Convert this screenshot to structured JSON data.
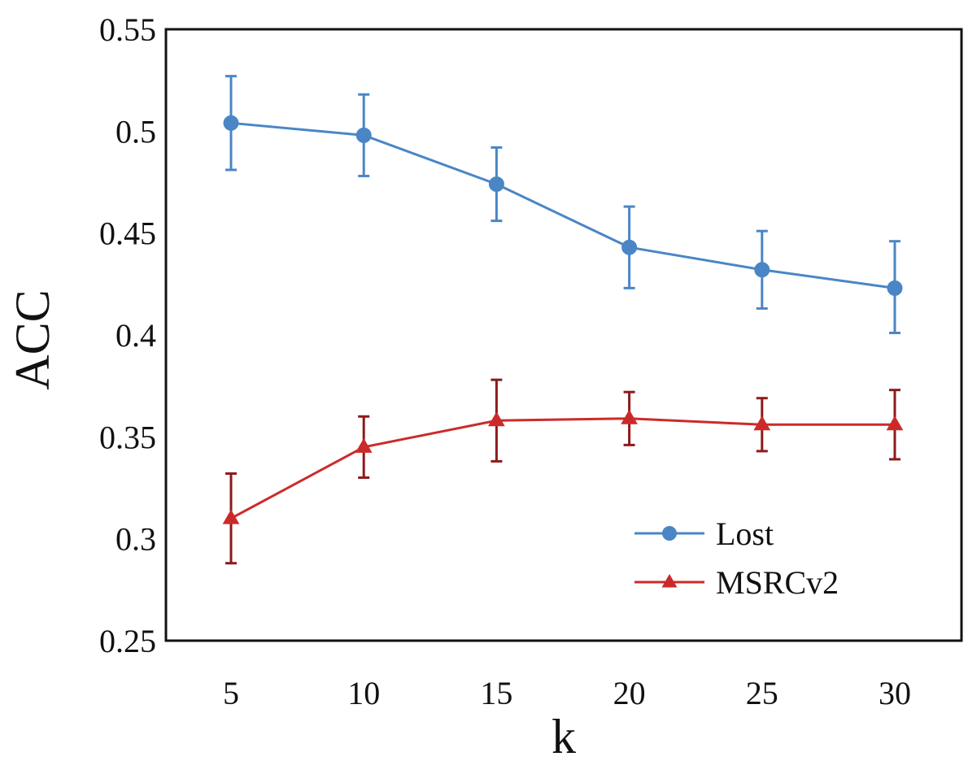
{
  "chart_data": {
    "type": "line",
    "title": "",
    "xlabel": "k",
    "ylabel": "ACC",
    "x": [
      5,
      10,
      15,
      20,
      25,
      30
    ],
    "xtick_labels": [
      "5",
      "10",
      "15",
      "20",
      "25",
      "30"
    ],
    "ylim": [
      0.25,
      0.55
    ],
    "yticks": [
      0.25,
      0.3,
      0.35,
      0.4,
      0.45,
      0.5,
      0.55
    ],
    "ytick_labels": [
      "0.25",
      "0.3",
      "0.35",
      "0.4",
      "0.45",
      "0.5",
      "0.55"
    ],
    "grid": false,
    "legend_position": "bottom-right",
    "series": [
      {
        "name": "Lost",
        "color": "#4a86c5",
        "marker": "circle",
        "values": [
          0.504,
          0.498,
          0.474,
          0.443,
          0.432,
          0.423
        ],
        "err_low": [
          0.481,
          0.478,
          0.456,
          0.423,
          0.413,
          0.401
        ],
        "err_high": [
          0.527,
          0.518,
          0.492,
          0.463,
          0.451,
          0.446
        ]
      },
      {
        "name": "MSRCv2",
        "color": "#cc2a2a",
        "errcolor": "#8e1a1a",
        "marker": "triangle",
        "values": [
          0.31,
          0.345,
          0.358,
          0.359,
          0.356,
          0.356
        ],
        "err_low": [
          0.288,
          0.33,
          0.338,
          0.346,
          0.343,
          0.339
        ],
        "err_high": [
          0.332,
          0.36,
          0.378,
          0.372,
          0.369,
          0.373
        ]
      }
    ]
  }
}
